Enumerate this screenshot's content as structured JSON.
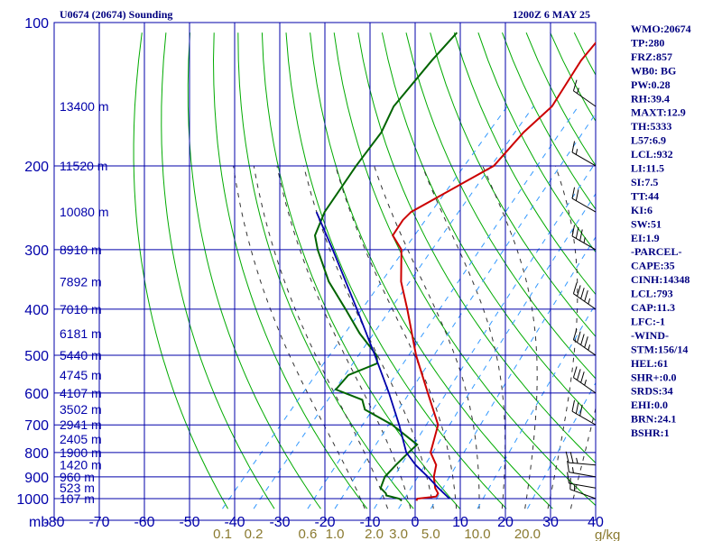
{
  "chart_data": {
    "type": "line",
    "title": "U0674 (20674) Sounding",
    "valid_time": "1200Z  6 MAY 25",
    "pressure_axis_unit": "mb",
    "pressure_levels": [
      100,
      200,
      300,
      400,
      500,
      600,
      700,
      800,
      900,
      1000
    ],
    "temperature_ticks": [
      "-80",
      "-70",
      "-60",
      "-50",
      "-40",
      "-30",
      "-20",
      "-10",
      "0",
      "10",
      "20",
      "30",
      "40"
    ],
    "mixing_ratio_labels": [
      "0.1",
      "0.2",
      "0.6",
      "1.0",
      "2.0",
      "3.0",
      "5.0",
      "10.0",
      "20.0"
    ],
    "mixing_ratio_unit": "g/kg",
    "height_labels": [
      {
        "p": 150,
        "text": "13400 m"
      },
      {
        "p": 200,
        "text": "11520 m"
      },
      {
        "p": 250,
        "text": "10080 m"
      },
      {
        "p": 300,
        "text": "8910 m"
      },
      {
        "p": 350,
        "text": "7892 m"
      },
      {
        "p": 400,
        "text": "7010 m"
      },
      {
        "p": 450,
        "text": "6181 m"
      },
      {
        "p": 500,
        "text": "5440 m"
      },
      {
        "p": 550,
        "text": "4745 m"
      },
      {
        "p": 600,
        "text": "4107 m"
      },
      {
        "p": 650,
        "text": "3502 m"
      },
      {
        "p": 700,
        "text": "2941 m"
      },
      {
        "p": 750,
        "text": "2405 m"
      },
      {
        "p": 800,
        "text": "1900 m"
      },
      {
        "p": 850,
        "text": "1420 m"
      },
      {
        "p": 900,
        "text": "960 m"
      },
      {
        "p": 950,
        "text": "523 m"
      },
      {
        "p": 1000,
        "text": "107 m"
      }
    ],
    "series": [
      {
        "name": "Temperature",
        "color": "#cc0000",
        "points": [
          {
            "p": 1010,
            "t": -0.3
          },
          {
            "p": 1000,
            "t": -0.5
          },
          {
            "p": 990,
            "t": 3.2
          },
          {
            "p": 975,
            "t": 3.0
          },
          {
            "p": 950,
            "t": 1.3
          },
          {
            "p": 900,
            "t": -1.2
          },
          {
            "p": 850,
            "t": -3.0
          },
          {
            "p": 800,
            "t": -6.7
          },
          {
            "p": 700,
            "t": -10.5
          },
          {
            "p": 600,
            "t": -19.0
          },
          {
            "p": 500,
            "t": -29.0
          },
          {
            "p": 400,
            "t": -40.0
          },
          {
            "p": 350,
            "t": -46.8
          },
          {
            "p": 300,
            "t": -53.0
          },
          {
            "p": 280,
            "t": -57.7
          },
          {
            "p": 260,
            "t": -58.5
          },
          {
            "p": 250,
            "t": -58.3
          },
          {
            "p": 200,
            "t": -49.3
          },
          {
            "p": 170,
            "t": -49.4
          },
          {
            "p": 150,
            "t": -48.3
          },
          {
            "p": 120,
            "t": -51.0
          },
          {
            "p": 105,
            "t": -51.4
          }
        ]
      },
      {
        "name": "Dewpoint",
        "color": "#006400",
        "points": [
          {
            "p": 1010,
            "t": -3.5
          },
          {
            "p": 1000,
            "t": -4.5
          },
          {
            "p": 985,
            "t": -7.9
          },
          {
            "p": 975,
            "t": -8.4
          },
          {
            "p": 950,
            "t": -10.6
          },
          {
            "p": 900,
            "t": -11.9
          },
          {
            "p": 850,
            "t": -11.8
          },
          {
            "p": 800,
            "t": -11.5
          },
          {
            "p": 770,
            "t": -11.2
          },
          {
            "p": 700,
            "t": -20.5
          },
          {
            "p": 650,
            "t": -29.5
          },
          {
            "p": 620,
            "t": -32.0
          },
          {
            "p": 590,
            "t": -39.8
          },
          {
            "p": 550,
            "t": -39.9
          },
          {
            "p": 520,
            "t": -35.9
          },
          {
            "p": 500,
            "t": -37.6
          },
          {
            "p": 450,
            "t": -45.6
          },
          {
            "p": 400,
            "t": -53.5
          },
          {
            "p": 350,
            "t": -62.6
          },
          {
            "p": 300,
            "t": -71.3
          },
          {
            "p": 280,
            "t": -74.7
          },
          {
            "p": 250,
            "t": -77.2
          },
          {
            "p": 200,
            "t": -79.4
          },
          {
            "p": 170,
            "t": -80.5
          },
          {
            "p": 150,
            "t": -82.9
          },
          {
            "p": 120,
            "t": -83.6
          },
          {
            "p": 105,
            "t": -83.6
          }
        ]
      },
      {
        "name": "Parcel",
        "color": "#0000aa",
        "points": [
          {
            "p": 1000,
            "t": 6.5
          },
          {
            "p": 950,
            "t": 2.0
          },
          {
            "p": 900,
            "t": -2.5
          },
          {
            "p": 850,
            "t": -7.5
          },
          {
            "p": 800,
            "t": -12.0
          },
          {
            "p": 700,
            "t": -19.0
          },
          {
            "p": 600,
            "t": -27.5
          },
          {
            "p": 500,
            "t": -38.0
          },
          {
            "p": 400,
            "t": -51.0
          },
          {
            "p": 300,
            "t": -68.0
          },
          {
            "p": 250,
            "t": -79.0
          }
        ]
      }
    ],
    "wind_barbs": [
      {
        "p": 1000,
        "dir": 290,
        "spd": 15
      },
      {
        "p": 950,
        "dir": 280,
        "spd": 10
      },
      {
        "p": 900,
        "dir": 280,
        "spd": 15
      },
      {
        "p": 850,
        "dir": 275,
        "spd": 25
      },
      {
        "p": 700,
        "dir": 300,
        "spd": 30
      },
      {
        "p": 600,
        "dir": 305,
        "spd": 35
      },
      {
        "p": 500,
        "dir": 305,
        "spd": 45
      },
      {
        "p": 400,
        "dir": 305,
        "spd": 45
      },
      {
        "p": 300,
        "dir": 300,
        "spd": 35
      },
      {
        "p": 250,
        "dir": 300,
        "spd": 20
      },
      {
        "p": 200,
        "dir": 300,
        "spd": 15
      },
      {
        "p": 150,
        "dir": 305,
        "spd": 15
      }
    ],
    "grid": true
  },
  "indices": [
    "WMO:20674",
    "TP:280",
    "FRZ:857",
    "WB0: BG",
    "PW:0.28",
    "RH:39.4",
    "MAXT:12.9",
    "TH:5333",
    "L57:6.9",
    "LCL:932",
    "LI:11.5",
    "SI:7.5",
    "TT:44",
    "KI:6",
    "SW:51",
    "EI:1.9",
    "-PARCEL-",
    "CAPE:35",
    "CINH:14348",
    "LCL:793",
    "CAP:11.3",
    "LFC:-1",
    "-WIND-",
    "STM:156/14",
    "HEL:61",
    "SHR+:0.0",
    "SRDS:34",
    "EHI:0.0",
    "BRN:24.1",
    "BSHR:1"
  ],
  "colors": {
    "grid": "#0000aa",
    "dry_adiabat": "#00aa00",
    "moist_adiabat": "#333333",
    "mixing_ratio": "#3399ff",
    "temperature": "#cc0000",
    "dewpoint": "#006400",
    "parcel": "#0000aa",
    "wind_barb": "#000000"
  }
}
